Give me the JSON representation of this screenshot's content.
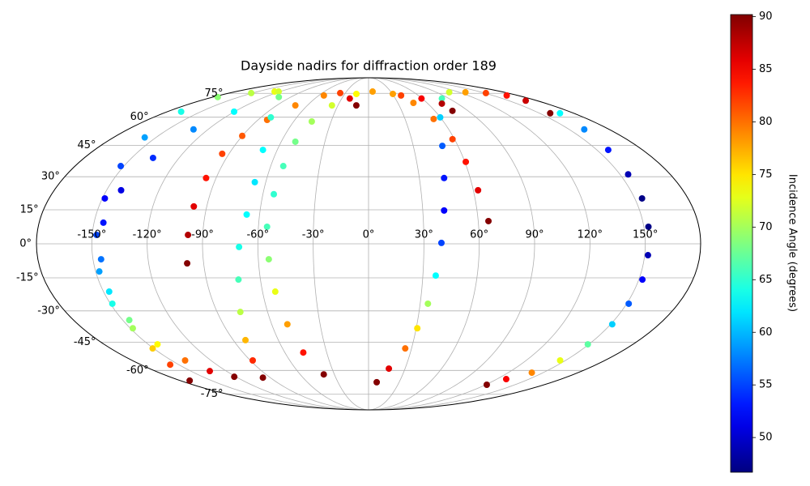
{
  "chart_data": {
    "type": "scatter",
    "projection": "mollweide",
    "title": "Dayside nadirs for diffraction order 189",
    "grid": true,
    "xlim": [
      -180,
      180
    ],
    "ylim": [
      -90,
      90
    ],
    "xticks": [
      {
        "value": -150,
        "label": "-150°"
      },
      {
        "value": -120,
        "label": "-120°"
      },
      {
        "value": -90,
        "label": "-90°"
      },
      {
        "value": -60,
        "label": "-60°"
      },
      {
        "value": -30,
        "label": "-30°"
      },
      {
        "value": 0,
        "label": "0°"
      },
      {
        "value": 30,
        "label": "30°"
      },
      {
        "value": 60,
        "label": "60°"
      },
      {
        "value": 90,
        "label": "90°"
      },
      {
        "value": 120,
        "label": "120°"
      },
      {
        "value": 150,
        "label": "150°"
      }
    ],
    "yticks": [
      {
        "value": -75,
        "label": "-75°"
      },
      {
        "value": -60,
        "label": "-60°"
      },
      {
        "value": -45,
        "label": "-45°"
      },
      {
        "value": -30,
        "label": "-30°"
      },
      {
        "value": -15,
        "label": "-15°"
      },
      {
        "value": 0,
        "label": "0°"
      },
      {
        "value": 15,
        "label": "15°"
      },
      {
        "value": 30,
        "label": "30°"
      },
      {
        "value": 45,
        "label": "45°"
      },
      {
        "value": 60,
        "label": "60°"
      },
      {
        "value": 75,
        "label": "75°"
      }
    ],
    "colorbar": {
      "label": "Incidence Angle (degrees)",
      "colormap": "jet",
      "clim": [
        46.7,
        90.2
      ],
      "ticks": [
        50,
        55,
        60,
        65,
        70,
        75,
        80,
        85,
        90
      ]
    },
    "series": [
      {
        "x": [
          -127.5,
          -151.6,
          -174.6,
          -167.7,
          -158,
          -152,
          -148.6,
          -147.6,
          -148,
          -148.9,
          -148.4,
          -150.7,
          -156.8,
          -171
        ],
        "values": [
          76.3,
          75.2,
          72.4,
          63.2,
          49.1,
          35.0,
          20.1,
          3.9,
          -12.2,
          -26.7,
          -38.2,
          -48.2,
          -56.8,
          -66.0
        ],
        "c": [
          73,
          71,
          69,
          64,
          59,
          55,
          52,
          55,
          59,
          64,
          70,
          76,
          82,
          90
        ]
      },
      {
        "x": [
          -122,
          -120.3,
          -130.9,
          -136.5,
          -141.7,
          -144.9,
          -145.6,
          -146.8,
          -146,
          -143.7,
          -139.7,
          -134,
          -121.5
        ],
        "values": [
          76.3,
          63.2,
          53.3,
          38.9,
          23.8,
          9.3,
          -6.8,
          -21.2,
          -34.3,
          -46.1,
          -54.5,
          -60.4,
          -63.7
        ],
        "c": [
          72,
          63,
          58,
          54,
          51,
          53,
          57,
          62,
          68,
          74,
          80,
          86,
          90
        ]
      },
      {
        "x": [
          -99,
          -98,
          -97.2,
          -95.9,
          -94.4,
          -90.1,
          -82.6,
          -71.8,
          -53.9,
          -36.6,
          -21,
          -12
        ],
        "values": [
          -8.6,
          3.9,
          16.5,
          29.4,
          40.9,
          49.9,
          58.5,
          67.0,
          73.5,
          75.2,
          71.4,
          67.0
        ],
        "c": [
          90,
          88,
          86,
          84,
          82,
          81,
          80,
          79,
          79,
          82,
          86,
          90
        ]
      },
      {
        "x": [
          -103.9,
          -81.7,
          -69.4,
          -66.4,
          -67.1,
          -70.2,
          -72.2,
          -76.2,
          -81.9,
          -88.2,
          -96.7
        ],
        "values": [
          72.4,
          59.9,
          42.8,
          27.5,
          12.9,
          -1.4,
          -15.8,
          -30.5,
          -44.0,
          -54.5,
          -64.2
        ],
        "c": [
          68,
          65,
          63,
          62,
          63,
          64,
          66,
          71,
          77,
          83,
          90
        ]
      },
      {
        "x": [
          -15.3,
          -35.9,
          -45.5,
          -50.3,
          -52.3,
          -53.8,
          -55.3,
          -54.3,
          -52.8,
          -50.3,
          -46.8,
          -39.3
        ],
        "values": [
          74.6,
          67.0,
          57.6,
          46.9,
          35.0,
          22.0,
          7.5,
          -6.8,
          -21.2,
          -36.3,
          -50.3,
          -62.3
        ],
        "c": [
          74,
          72,
          70,
          68,
          66,
          65,
          66,
          69,
          73,
          78,
          84,
          90
        ]
      },
      {
        "x": [
          8.0,
          16.7,
          25.6,
          30.7,
          34.5,
          37.1,
          39.5,
          41.8,
          44.6,
          49.5,
          59.9,
          82,
          107,
          128.5,
          151.6,
          166.6,
          168,
          159.4
        ],
        "values": [
          -67.0,
          -59.0,
          -48.2,
          -38.2,
          -26.7,
          -14.0,
          0.4,
          14.7,
          29.4,
          44.8,
          59.9,
          71.4,
          75.8,
          75.8,
          75.2,
          73.5,
          70.0,
          62.3
        ],
        "c": [
          90,
          86,
          80,
          75,
          70,
          63,
          55,
          52,
          53,
          56,
          61,
          66,
          72,
          78,
          82,
          84,
          87,
          90
        ]
      },
      {
        "x": [
          5.5,
          30.6,
          46.0,
          53.5,
          58.6,
          60.6,
          62.7,
          65.6
        ],
        "values": [
          76.3,
          74.6,
          68.6,
          59.0,
          48.2,
          37.0,
          23.8,
          10.0
        ],
        "c": [
          78,
          78,
          79,
          80,
          82,
          84,
          86,
          90
        ]
      },
      {
        "x": [
          39.2,
          59.2,
          74.1,
          75.9
        ],
        "values": [
          73.5,
          71.4,
          68.1,
          63.7
        ],
        "c": [
          82,
          85,
          88,
          90
        ]
      },
      {
        "x": [
          168,
          161.3,
          157.5,
          154.9,
          154.1,
          152.5,
          151.8,
          152,
          151.2,
          151,
          149.3,
          145.9,
          140.3,
          128.7,
          121.2
        ],
        "values": [
          62.3,
          53.3,
          42.8,
          31.1,
          20.1,
          7.5,
          -5.0,
          -15.8,
          -26.7,
          -36.3,
          -46.1,
          -54.5,
          -61.3,
          -65.1,
          -68.6
        ],
        "c": [
          63,
          58,
          53,
          49,
          47,
          47,
          49,
          52,
          56,
          61,
          67,
          73,
          79,
          85,
          90
        ]
      }
    ]
  }
}
